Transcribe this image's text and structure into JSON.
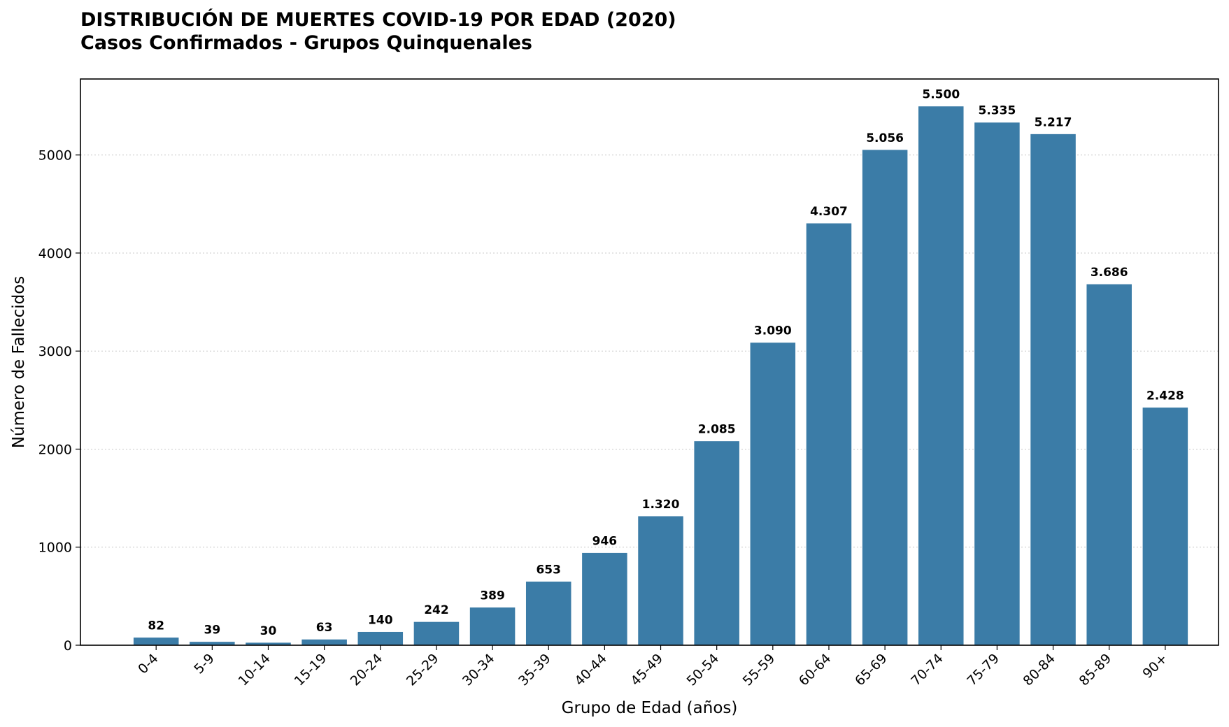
{
  "chart_data": {
    "type": "bar",
    "title": "DISTRIBUCIÓN DE MUERTES COVID-19 POR EDAD (2020)",
    "subtitle": "Casos Confirmados - Grupos Quinquenales",
    "xlabel": "Grupo de Edad (años)",
    "ylabel": "Número de Fallecidos",
    "categories": [
      "0-4",
      "5-9",
      "10-14",
      "15-19",
      "20-24",
      "25-29",
      "30-34",
      "35-39",
      "40-44",
      "45-49",
      "50-54",
      "55-59",
      "60-64",
      "65-69",
      "70-74",
      "75-79",
      "80-84",
      "85-89",
      "90+"
    ],
    "values": [
      82,
      39,
      30,
      63,
      140,
      242,
      389,
      653,
      946,
      1320,
      2085,
      3090,
      4307,
      5056,
      5500,
      5335,
      5217,
      3686,
      2428
    ],
    "value_labels": [
      "82",
      "39",
      "30",
      "63",
      "140",
      "242",
      "389",
      "653",
      "946",
      "1.320",
      "2.085",
      "3.090",
      "4.307",
      "5.056",
      "5.500",
      "5.335",
      "5.217",
      "3.686",
      "2.428"
    ],
    "yticks": [
      0,
      1000,
      2000,
      3000,
      4000,
      5000
    ],
    "ylim": [
      0,
      5775
    ],
    "grid": "horizontal-dotted",
    "bar_color": "#3b7ca7"
  }
}
